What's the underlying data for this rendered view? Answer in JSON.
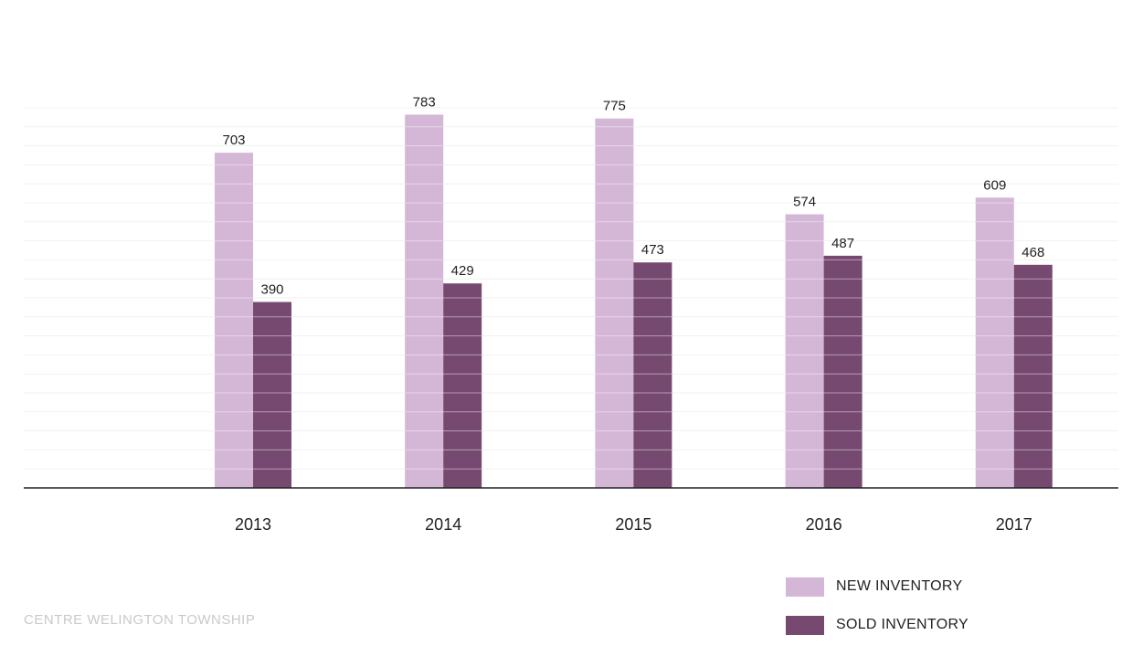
{
  "chart_data": {
    "type": "bar",
    "title": "",
    "xlabel": "",
    "ylabel": "",
    "categories": [
      "2013",
      "2014",
      "2015",
      "2016",
      "2017"
    ],
    "series": [
      {
        "name": "NEW INVENTORY",
        "color": "#d4b6d6",
        "values": [
          703,
          783,
          775,
          574,
          609
        ]
      },
      {
        "name": "SOLD INVENTORY",
        "color": "#764a70",
        "values": [
          390,
          429,
          473,
          487,
          468
        ]
      }
    ],
    "ylim": [
      0,
      800
    ],
    "grid": true,
    "legend_position": "bottom-right",
    "show_data_labels": true
  },
  "legend": {
    "items": [
      {
        "label": "NEW INVENTORY",
        "color": "#d4b6d6"
      },
      {
        "label": "SOLD INVENTORY",
        "color": "#764a70"
      }
    ]
  },
  "footer": {
    "source": "CENTRE WELINGTON TOWNSHIP"
  }
}
